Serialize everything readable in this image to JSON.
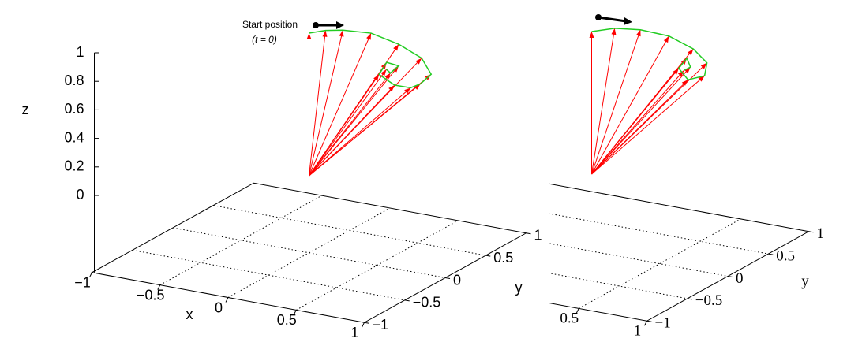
{
  "chart_data": [
    {
      "type": "quiver3d",
      "annotation": "Start position",
      "annotation_sub": "(t = 0)",
      "xlabel": "x",
      "ylabel": "y",
      "zlabel": "z",
      "xlim": [
        -1,
        1
      ],
      "ylim": [
        -1,
        1
      ],
      "zlim": [
        -0.54,
        1
      ],
      "xticks": [
        {
          "value": -1,
          "label": "−1"
        },
        {
          "value": -0.5,
          "label": "−0.5"
        },
        0,
        0.5,
        1
      ],
      "yticks": [
        {
          "value": -1,
          "label": "−1"
        },
        {
          "value": -0.5,
          "label": "−0.5"
        },
        0,
        0.5,
        1
      ],
      "zticks": [
        0,
        0.2,
        0.4,
        0.6,
        0.8,
        1
      ],
      "arrow_color": "#ff0000",
      "curve_color": "#22cc22",
      "grid": true,
      "x": [
        0,
        0.05,
        0.1,
        0.2,
        0.35,
        0.5,
        0.6,
        0.58,
        0.55,
        0.45,
        0.3,
        0.35,
        0.45,
        0.42,
        0.39
      ],
      "y": [
        0,
        0.12,
        0.25,
        0.43,
        0.52,
        0.55,
        0.5,
        0.4,
        0.33,
        0.3,
        0.36,
        0.37,
        0.35,
        0.3,
        0.3
      ],
      "z": [
        1,
        0.99,
        0.96,
        0.9,
        0.82,
        0.74,
        0.66,
        0.62,
        0.61,
        0.62,
        0.65,
        0.74,
        0.74,
        0.7,
        0.72
      ]
    },
    {
      "type": "quiver3d",
      "ylabel": "y",
      "xlim": [
        -1,
        1
      ],
      "ylim": [
        -1,
        1
      ],
      "zlim": [
        -0.54,
        1
      ],
      "xticks": [
        0.5,
        1
      ],
      "yticks": [
        {
          "value": -1,
          "label": "−1"
        },
        {
          "value": -0.5,
          "label": "−0.5"
        },
        0,
        0.5,
        1
      ],
      "arrow_color": "#ff0000",
      "curve_color": "#22cc22",
      "grid": true,
      "x": [
        0,
        0.08,
        0.18,
        0.3,
        0.45,
        0.55,
        0.58,
        0.5,
        0.42,
        0.45,
        0.5,
        0.47
      ],
      "y": [
        0,
        0.15,
        0.3,
        0.45,
        0.5,
        0.5,
        0.42,
        0.35,
        0.37,
        0.42,
        0.38,
        0.35
      ],
      "z": [
        1,
        0.99,
        0.95,
        0.88,
        0.8,
        0.72,
        0.66,
        0.64,
        0.7,
        0.76,
        0.72,
        0.7
      ]
    }
  ]
}
